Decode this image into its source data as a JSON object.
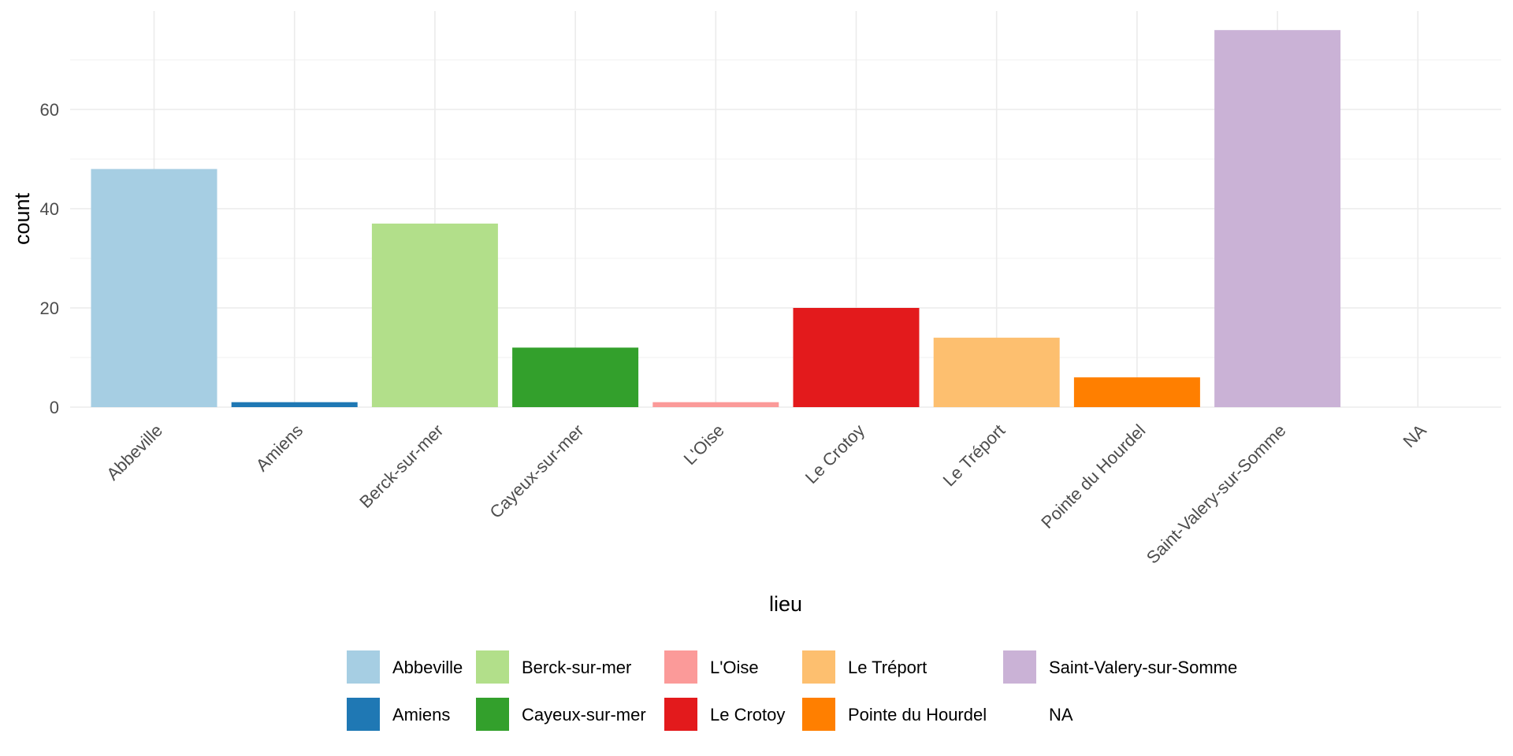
{
  "chart_data": {
    "type": "bar",
    "xlabel": "lieu",
    "ylabel": "count",
    "ylim": [
      0,
      80
    ],
    "y_ticks": [
      0,
      20,
      40,
      60
    ],
    "grid": true,
    "legend_position": "bottom",
    "categories": [
      "Abbeville",
      "Amiens",
      "Berck-sur-mer",
      "Cayeux-sur-mer",
      "L'Oise",
      "Le Crotoy",
      "Le Tréport",
      "Pointe du Hourdel",
      "Saint-Valery-sur-Somme",
      "NA"
    ],
    "values": [
      48,
      1,
      37,
      12,
      1,
      20,
      14,
      6,
      76,
      0
    ],
    "colors": [
      "#A6CEE3",
      "#1F78B4",
      "#B2DF8A",
      "#33A02C",
      "#FB9A99",
      "#E31A1C",
      "#FDBF6F",
      "#FF7F00",
      "#CAB2D6",
      "#FFFFFF"
    ]
  }
}
